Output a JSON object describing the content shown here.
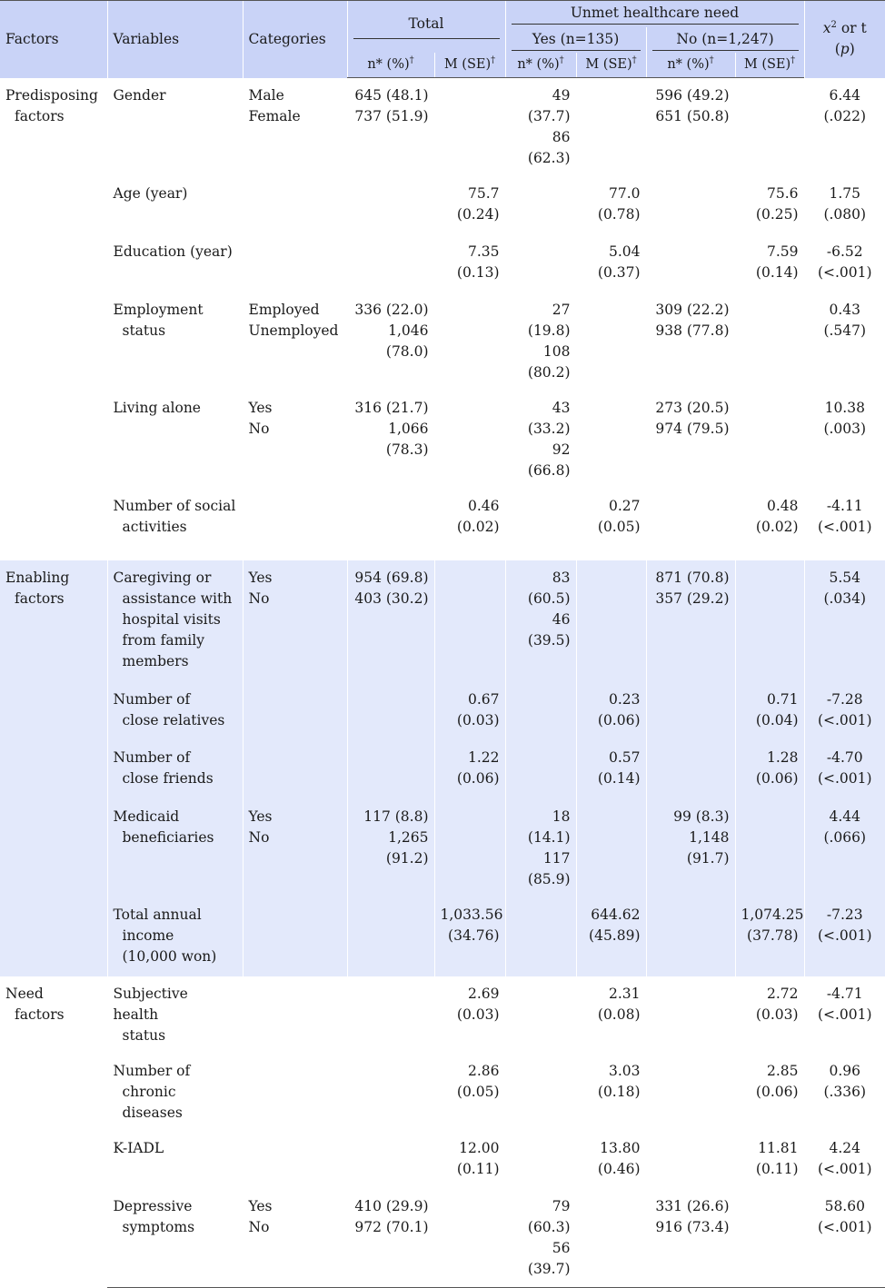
{
  "headers": {
    "factors": "Factors",
    "variables": "Variables",
    "categories": "Categories",
    "total": "Total",
    "unmet": "Unmet healthcare need",
    "yes": "Yes (n=135)",
    "no": "No (n=1,247)",
    "npct": "n* (%)",
    "mse": "M (SE)",
    "dagger": "†",
    "chi_base": "x",
    "chi_sup": "2",
    "chi_rest": " or t",
    "p": "(p)"
  },
  "groups": {
    "predisposing": {
      "l1": "Predisposing",
      "l2": "factors"
    },
    "enabling": {
      "l1": "Enabling",
      "l2": "factors"
    },
    "need": {
      "l1": "Need",
      "l2": "factors"
    }
  },
  "rows": {
    "gender": {
      "v1": "Gender",
      "c1": "Male",
      "c2": "Female",
      "tn1": "645 (48.1)",
      "tn2": "737 (51.9)",
      "yn1": "49 (37.7)",
      "yn2": "86 (62.3)",
      "nn1": "596 (49.2)",
      "nn2": "651 (50.8)",
      "s1": "6.44",
      "s2": "(.022)"
    },
    "age": {
      "v1": "Age (year)",
      "tm1": "75.7",
      "tm2": "(0.24)",
      "ym1": "77.0",
      "ym2": "(0.78)",
      "nm1": "75.6",
      "nm2": "(0.25)",
      "s1": "1.75",
      "s2": "(.080)"
    },
    "edu": {
      "v1": "Education (year)",
      "tm1": "7.35",
      "tm2": "(0.13)",
      "ym1": "5.04",
      "ym2": "(0.37)",
      "nm1": "7.59",
      "nm2": "(0.14)",
      "s1": "-6.52",
      "s2": "(<.001)"
    },
    "emp": {
      "v1": "Employment",
      "v2": "status",
      "c1": "Employed",
      "c2": "Unemployed",
      "tn1": "336 (22.0)",
      "tn2": "1,046 (78.0)",
      "yn1": "27 (19.8)",
      "yn2": "108 (80.2)",
      "nn1": "309 (22.2)",
      "nn2": "938 (77.8)",
      "s1": "0.43",
      "s2": "(.547)"
    },
    "alone": {
      "v1": "Living alone",
      "c1": "Yes",
      "c2": "No",
      "tn1": "316 (21.7)",
      "tn2": "1,066 (78.3)",
      "yn1": "43 (33.2)",
      "yn2": "92 (66.8)",
      "nn1": "273 (20.5)",
      "nn2": "974 (79.5)",
      "s1": "10.38",
      "s2": "(.003)"
    },
    "social": {
      "v1": "Number of social",
      "v2": "activities",
      "tm1": "0.46",
      "tm2": "(0.02)",
      "ym1": "0.27",
      "ym2": "(0.05)",
      "nm1": "0.48",
      "nm2": "(0.02)",
      "s1": "-4.11",
      "s2": "(<.001)"
    },
    "care": {
      "v1": "Caregiving or",
      "v2": "assistance with",
      "v3": "hospital visits",
      "v4": "from family",
      "v5": "members",
      "c1": "Yes",
      "c2": "No",
      "tn1": "954 (69.8)",
      "tn2": "403 (30.2)",
      "yn1": "83 (60.5)",
      "yn2": "46 (39.5)",
      "nn1": "871 (70.8)",
      "nn2": "357 (29.2)",
      "s1": "5.54",
      "s2": "(.034)"
    },
    "relatives": {
      "v1": "Number of",
      "v2": "close relatives",
      "tm1": "0.67",
      "tm2": "(0.03)",
      "ym1": "0.23",
      "ym2": "(0.06)",
      "nm1": "0.71",
      "nm2": "(0.04)",
      "s1": "-7.28",
      "s2": "(<.001)"
    },
    "friends": {
      "v1": "Number of",
      "v2": "close friends",
      "tm1": "1.22",
      "tm2": "(0.06)",
      "ym1": "0.57",
      "ym2": "(0.14)",
      "nm1": "1.28",
      "nm2": "(0.06)",
      "s1": "-4.70",
      "s2": "(<.001)"
    },
    "medicaid": {
      "v1": "Medicaid",
      "v2": "beneficiaries",
      "c1": "Yes",
      "c2": "No",
      "tn1": "117 (8.8)",
      "tn2": "1,265 (91.2)",
      "yn1": "18 (14.1)",
      "yn2": "117 (85.9)",
      "nn1": "99 (8.3)",
      "nn2": "1,148 (91.7)",
      "s1": "4.44",
      "s2": "(.066)"
    },
    "income": {
      "v1": "Total annual",
      "v2": "income",
      "v3": "(10,000 won)",
      "tm1": "1,033.56",
      "tm2": "(34.76)",
      "ym1": "644.62",
      "ym2": "(45.89)",
      "nm1": "1,074.25",
      "nm2": "(37.78)",
      "s1": "-7.23",
      "s2": "(<.001)"
    },
    "health": {
      "v1": "Subjective health",
      "v2": "status",
      "tm1": "2.69",
      "tm2": "(0.03)",
      "ym1": "2.31",
      "ym2": "(0.08)",
      "nm1": "2.72",
      "nm2": "(0.03)",
      "s1": "-4.71",
      "s2": "(<.001)"
    },
    "chronic": {
      "v1": "Number of",
      "v2": "chronic diseases",
      "tm1": "2.86",
      "tm2": "(0.05)",
      "ym1": "3.03",
      "ym2": "(0.18)",
      "nm1": "2.85",
      "nm2": "(0.06)",
      "s1": "0.96",
      "s2": "(.336)"
    },
    "kiadl": {
      "v1": "K-IADL",
      "tm1": "12.00",
      "tm2": "(0.11)",
      "ym1": "13.80",
      "ym2": "(0.46)",
      "nm1": "11.81",
      "nm2": "(0.11)",
      "s1": "4.24",
      "s2": "(<.001)"
    },
    "dep": {
      "v1": "Depressive",
      "v2": "symptoms",
      "c1": "Yes",
      "c2": "No",
      "tn1": "410 (29.9)",
      "tn2": "972 (70.1)",
      "yn1": "79 (60.3)",
      "yn2": "56 (39.7)",
      "nn1": "331 (26.6)",
      "nn2": "916 (73.4)",
      "s1": "58.60",
      "s2": "(<.001)"
    }
  }
}
